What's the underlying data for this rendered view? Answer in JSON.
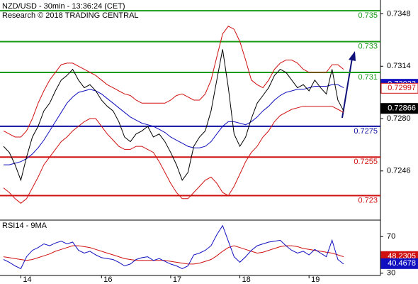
{
  "chart_data": [
    {
      "type": "line",
      "title": "NZD/USD - 30min - 13:36:24 (CET)",
      "subtitle": "Research © 2018 TRADING CENTRAL",
      "categories": [
        null,
        null,
        null,
        "14",
        null,
        null,
        null,
        null,
        null,
        null,
        null,
        null,
        null,
        null,
        null,
        null,
        null,
        "16",
        null,
        null,
        null,
        null,
        null,
        null,
        null,
        null,
        null,
        null,
        null,
        "17",
        null,
        null,
        null,
        null,
        null,
        null,
        null,
        null,
        null,
        null,
        null,
        "18",
        null,
        null,
        null,
        null,
        null,
        null,
        null,
        null,
        null,
        null,
        null,
        "19",
        null,
        null,
        null,
        null,
        null,
        null
      ],
      "series": [
        {
          "color": "#d01010",
          "values": [
            0.7272,
            0.727,
            0.7268,
            0.7268,
            0.7272,
            0.728,
            0.729,
            0.7298,
            0.7305,
            0.731,
            0.7315,
            0.7316,
            0.7316,
            0.7314,
            0.7312,
            0.731,
            0.7308,
            0.7305,
            0.7302,
            0.73,
            0.7298,
            0.7296,
            0.7295,
            0.7292,
            0.729,
            0.729,
            0.729,
            0.729,
            0.729,
            0.7292,
            0.7295,
            0.7296,
            0.7294,
            0.7292,
            0.7292,
            0.7296,
            0.7305,
            0.732,
            0.7335,
            0.734,
            0.7338,
            0.733,
            0.7318,
            0.7305,
            0.7302,
            0.73,
            0.7305,
            0.7312,
            0.7316,
            0.7318,
            0.7318,
            0.7316,
            0.7312,
            0.731,
            0.731,
            0.731,
            0.731,
            0.7315,
            0.7315,
            0.7312
          ]
        },
        {
          "color": "#d01010",
          "values": [
            0.7235,
            0.7232,
            0.7228,
            0.7225,
            0.7228,
            0.7235,
            0.7242,
            0.725,
            0.7255,
            0.726,
            0.7265,
            0.7268,
            0.7272,
            0.7275,
            0.7278,
            0.728,
            0.728,
            0.7275,
            0.727,
            0.7266,
            0.7262,
            0.726,
            0.726,
            0.7262,
            0.7262,
            0.726,
            0.7258,
            0.7252,
            0.7245,
            0.7238,
            0.7232,
            0.7228,
            0.7228,
            0.7232,
            0.7236,
            0.724,
            0.7242,
            0.7238,
            0.7232,
            0.723,
            0.7236,
            0.7244,
            0.7252,
            0.7258,
            0.7262,
            0.7268,
            0.7272,
            0.7278,
            0.7282,
            0.7284,
            0.7286,
            0.7287,
            0.7288,
            0.7288,
            0.7288,
            0.7288,
            0.7288,
            0.7288,
            0.7286,
            0.7284
          ]
        },
        {
          "color": "#1010c0",
          "values": [
            0.725,
            0.725,
            0.7251,
            0.7252,
            0.7254,
            0.7257,
            0.7261,
            0.7266,
            0.7272,
            0.7278,
            0.7284,
            0.729,
            0.7294,
            0.7297,
            0.7298,
            0.7299,
            0.7298,
            0.7296,
            0.7293,
            0.729,
            0.7287,
            0.7284,
            0.7281,
            0.7279,
            0.7277,
            0.7276,
            0.7275,
            0.7273,
            0.7271,
            0.7268,
            0.7266,
            0.7264,
            0.7262,
            0.7261,
            0.7261,
            0.7262,
            0.7265,
            0.727,
            0.7275,
            0.7278,
            0.7278,
            0.7277,
            0.7276,
            0.7278,
            0.7281,
            0.7285,
            0.7288,
            0.7292,
            0.7295,
            0.7297,
            0.7298,
            0.7299,
            0.7299,
            0.73,
            0.7301,
            0.7301,
            0.7301,
            0.7302,
            0.7302,
            0.73
          ]
        },
        {
          "color": "#000000",
          "values": [
            0.7262,
            0.7258,
            0.725,
            0.724,
            0.7255,
            0.7268,
            0.7275,
            0.7285,
            0.729,
            0.7298,
            0.7305,
            0.7308,
            0.7312,
            0.7305,
            0.73,
            0.7302,
            0.7298,
            0.7292,
            0.7288,
            0.7285,
            0.7278,
            0.7268,
            0.7265,
            0.727,
            0.7272,
            0.7275,
            0.7268,
            0.727,
            0.7265,
            0.7258,
            0.725,
            0.724,
            0.7245,
            0.7262,
            0.7268,
            0.7272,
            0.7285,
            0.7305,
            0.7325,
            0.73,
            0.727,
            0.7262,
            0.7268,
            0.728,
            0.729,
            0.7295,
            0.73,
            0.7308,
            0.7312,
            0.731,
            0.7305,
            0.73,
            0.7302,
            0.7298,
            0.7305,
            0.73,
            0.7296,
            0.7312,
            0.7292,
            0.7285
          ]
        }
      ],
      "levels": [
        {
          "value": 0.735,
          "color": "#1a9a1a"
        },
        {
          "value": 0.733,
          "color": "#1a9a1a"
        },
        {
          "value": 0.731,
          "color": "#1a9a1a"
        },
        {
          "value": 0.7275,
          "color": "#1010a0"
        },
        {
          "value": 0.7255,
          "color": "#d01010"
        },
        {
          "value": 0.723,
          "color": "#d01010"
        }
      ],
      "badges": [
        {
          "value": 0.73023,
          "color": "#1010c0"
        },
        {
          "value": 0.72997,
          "color": "#d01010"
        },
        {
          "value": 0.72866,
          "color": "#000000"
        }
      ],
      "ylim": [
        0.7215,
        0.7357
      ],
      "yticks": [
        0.7348,
        0.7314,
        {
          "value": 0.728,
          "label": "0.7280"
        },
        0.7246
      ]
    },
    {
      "type": "line",
      "title": "RSI14 - 9MA",
      "series": [
        {
          "color": "#d01010",
          "values": [
            48,
            47,
            46,
            45,
            44,
            45,
            47,
            49,
            51,
            54,
            56,
            58,
            60,
            60,
            59,
            58,
            56,
            54,
            52,
            50,
            48,
            46,
            45,
            44,
            44,
            44,
            44,
            44,
            44,
            43,
            42,
            41,
            40,
            40,
            41,
            43,
            45,
            49,
            54,
            58,
            60,
            58,
            56,
            54,
            52,
            53,
            55,
            57,
            59,
            60,
            60,
            59,
            57,
            56,
            55,
            54,
            53,
            52,
            50,
            48
          ]
        },
        {
          "color": "#1010c0",
          "values": [
            45,
            42,
            38,
            35,
            48,
            55,
            58,
            62,
            60,
            63,
            65,
            62,
            64,
            55,
            52,
            54,
            50,
            47,
            46,
            45,
            42,
            38,
            40,
            45,
            47,
            48,
            44,
            46,
            43,
            40,
            38,
            35,
            38,
            50,
            52,
            55,
            60,
            72,
            82,
            65,
            48,
            42,
            48,
            55,
            60,
            62,
            64,
            65,
            66,
            60,
            55,
            52,
            54,
            50,
            56,
            52,
            48,
            66,
            45,
            40
          ]
        }
      ],
      "badges": [
        {
          "value": 48.2305,
          "color": "#d01010"
        },
        {
          "value": 40.4678,
          "color": "#1010c0"
        }
      ],
      "ylim": [
        26,
        88
      ],
      "yticks": [
        70,
        30
      ]
    }
  ]
}
